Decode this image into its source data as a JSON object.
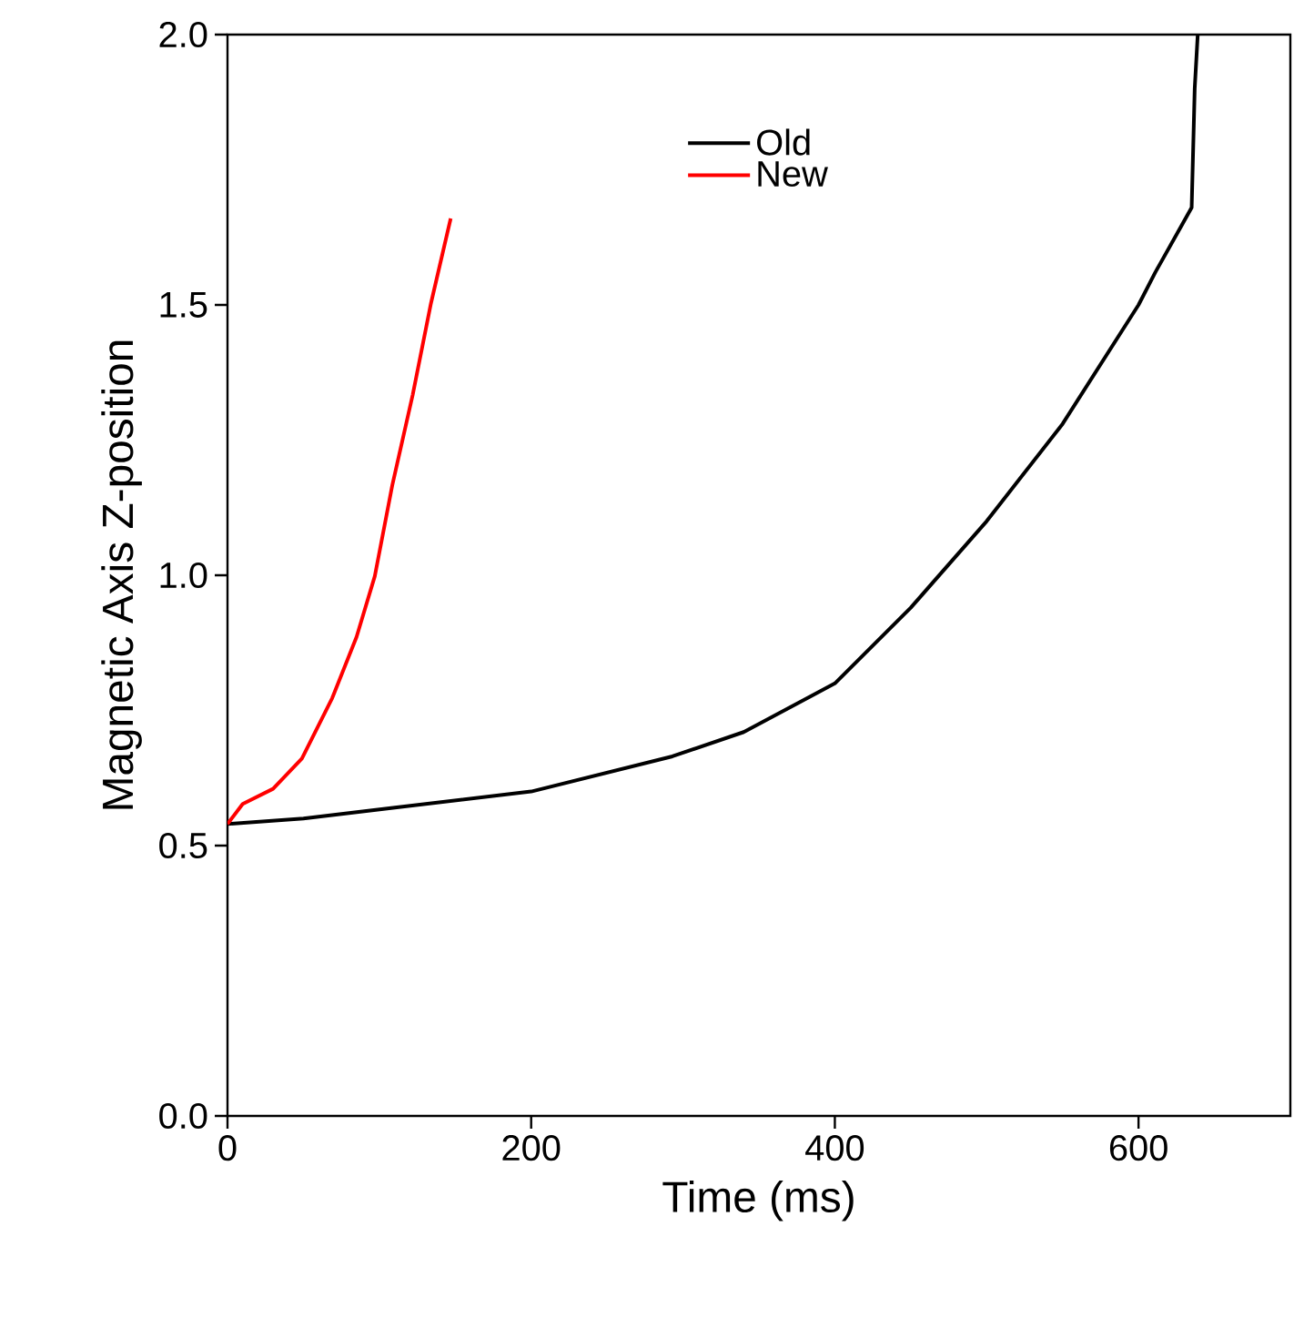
{
  "chart_data": {
    "type": "line",
    "xlabel": "Time (ms)",
    "ylabel": "Magnetic Axis Z-position",
    "xlim": [
      0,
      700
    ],
    "xticks": [
      0,
      200,
      400,
      600
    ],
    "ylim": [
      0,
      2.0
    ],
    "yticks": [
      {
        "value": 0,
        "label": "0.0"
      },
      {
        "value": 0.5,
        "label": "0.5"
      },
      {
        "value": 1.0,
        "label": "1.0"
      },
      {
        "value": 1.5,
        "label": "1.5"
      },
      {
        "value": 2.0,
        "label": "2.0"
      }
    ],
    "grid": false,
    "legend": "top",
    "marker": "none",
    "line_style": "solid",
    "series": [
      {
        "name": "Old",
        "color": "#000000",
        "x": [
          0,
          50,
          109,
          200,
          293,
          340,
          400,
          450,
          500,
          550,
          600,
          611,
          635,
          637,
          639
        ],
        "values": [
          0.54,
          0.55,
          0.57,
          0.6,
          0.665,
          0.71,
          0.8,
          0.94,
          1.1,
          1.28,
          1.5,
          1.56,
          1.68,
          1.9,
          2.0
        ]
      },
      {
        "name": "New",
        "color": "#ff0000",
        "x": [
          0,
          10,
          30,
          49,
          69,
          85,
          97,
          108.5,
          122,
          134,
          147
        ],
        "values": [
          0.54,
          0.577,
          0.605,
          0.661,
          0.773,
          0.886,
          0.998,
          1.166,
          1.334,
          1.503,
          1.66
        ]
      }
    ]
  }
}
